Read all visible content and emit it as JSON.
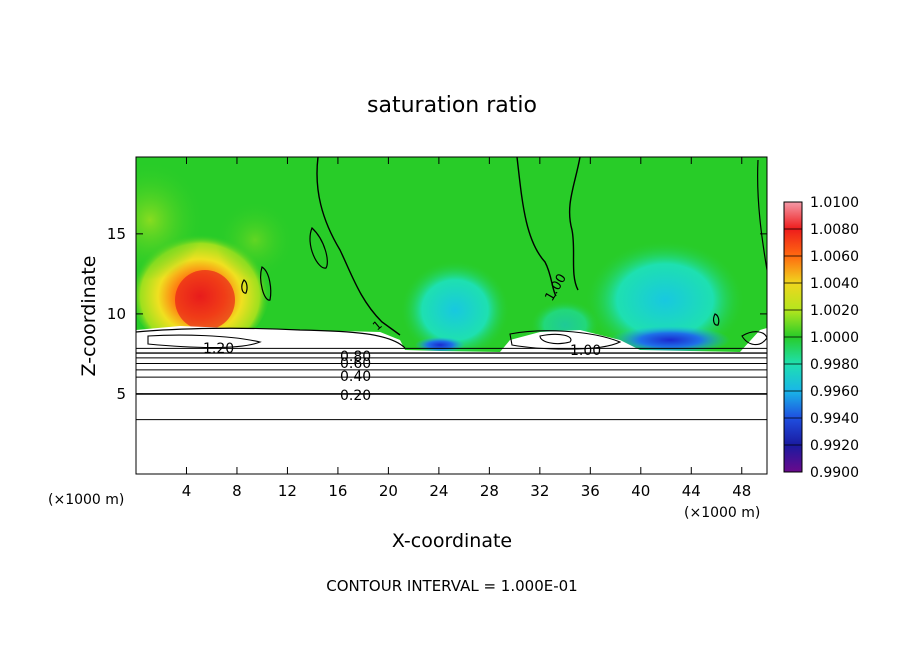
{
  "chart_data": {
    "type": "heatmap",
    "title": "saturation ratio",
    "xlabel": "X-coordinate",
    "ylabel": "Z-coordinate",
    "x_units_left": "(×1000 m)",
    "x_units_right": "(×1000 m)",
    "xlim": [
      0,
      50
    ],
    "ylim": [
      0,
      19.8
    ],
    "xticks": [
      4,
      8,
      12,
      16,
      20,
      24,
      28,
      32,
      36,
      40,
      44,
      48
    ],
    "yticks": [
      5,
      10,
      15
    ],
    "footer": "CONTOUR INTERVAL = 1.000E-01",
    "colorbar": {
      "levels": [
        "0.9900",
        "0.9920",
        "0.9940",
        "0.9960",
        "0.9980",
        "1.0000",
        "1.0020",
        "1.0040",
        "1.0060",
        "1.0080",
        "1.0100"
      ],
      "colors": [
        "#6a0a8c",
        "#1a1aa0",
        "#1f4fe0",
        "#19b6e8",
        "#1fe0b0",
        "#28cc28",
        "#b4e61e",
        "#f0d61e",
        "#ff6a10",
        "#ee1c1c",
        "#f59aa8"
      ]
    },
    "contour_labels": [
      "1.20",
      "1",
      "0.80",
      "0.60",
      "0.40",
      "0.20",
      "1.00",
      "1.00"
    ],
    "contour_isolines_z": [
      3.4,
      5.0,
      6.05,
      6.5,
      6.9,
      7.25,
      7.55,
      7.85
    ],
    "background_value": 1.0
  }
}
